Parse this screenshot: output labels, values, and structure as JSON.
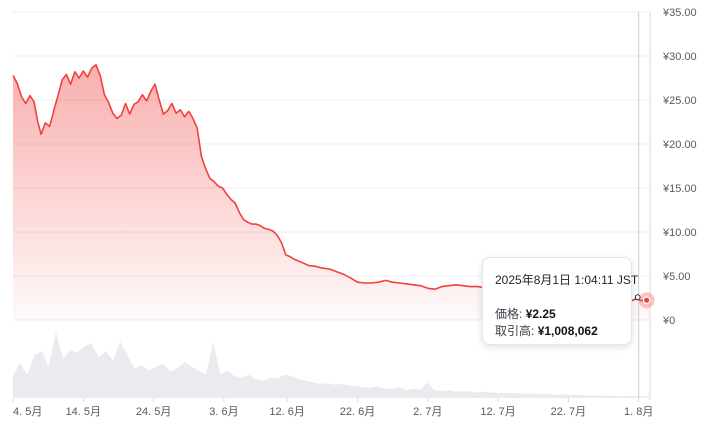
{
  "chart_data": {
    "type": "area",
    "y_axis": {
      "position": "right",
      "range": [
        0,
        35
      ],
      "ticks": [
        35,
        30,
        25,
        20,
        15,
        10,
        5,
        0
      ],
      "tick_labels": [
        "¥35.00",
        "¥30.00",
        "¥25.00",
        "¥20.00",
        "¥15.00",
        "¥10.00",
        "¥5.00",
        "¥0"
      ]
    },
    "x_axis": {
      "tick_labels": [
        "4. 5月",
        "14. 5月",
        "24. 5月",
        "3. 6月",
        "12. 6月",
        "22. 6月",
        "2. 7月",
        "12. 7月",
        "22. 7月",
        "1. 8月"
      ],
      "tick_days": [
        0,
        10,
        20,
        30,
        39,
        49,
        59,
        69,
        79,
        89
      ]
    },
    "grid": true,
    "price_series": {
      "color": "#f0413e",
      "points": [
        [
          0,
          27.8
        ],
        [
          0.6,
          26.9
        ],
        [
          1.2,
          25.4
        ],
        [
          1.8,
          24.6
        ],
        [
          2.4,
          25.5
        ],
        [
          3.0,
          24.8
        ],
        [
          3.5,
          22.6
        ],
        [
          4.0,
          21.1
        ],
        [
          4.6,
          22.4
        ],
        [
          5.2,
          22.0
        ],
        [
          5.8,
          23.8
        ],
        [
          6.4,
          25.5
        ],
        [
          7.0,
          27.3
        ],
        [
          7.6,
          27.9
        ],
        [
          8.2,
          26.8
        ],
        [
          8.8,
          28.2
        ],
        [
          9.4,
          27.5
        ],
        [
          10.0,
          28.3
        ],
        [
          10.6,
          27.6
        ],
        [
          11.2,
          28.6
        ],
        [
          11.8,
          29.0
        ],
        [
          12.4,
          27.8
        ],
        [
          13.0,
          25.6
        ],
        [
          13.6,
          24.7
        ],
        [
          14.2,
          23.5
        ],
        [
          14.8,
          22.9
        ],
        [
          15.4,
          23.3
        ],
        [
          16.0,
          24.6
        ],
        [
          16.6,
          23.4
        ],
        [
          17.2,
          24.5
        ],
        [
          17.8,
          24.8
        ],
        [
          18.4,
          25.6
        ],
        [
          19.0,
          24.9
        ],
        [
          19.6,
          26.0
        ],
        [
          20.2,
          26.8
        ],
        [
          20.8,
          25.0
        ],
        [
          21.4,
          23.4
        ],
        [
          22.0,
          23.8
        ],
        [
          22.6,
          24.6
        ],
        [
          23.2,
          23.5
        ],
        [
          23.8,
          23.9
        ],
        [
          24.4,
          23.1
        ],
        [
          25.0,
          23.7
        ],
        [
          25.6,
          22.9
        ],
        [
          26.2,
          21.8
        ],
        [
          26.8,
          18.6
        ],
        [
          27.4,
          17.2
        ],
        [
          28.0,
          16.1
        ],
        [
          28.6,
          15.7
        ],
        [
          29.2,
          15.2
        ],
        [
          29.8,
          15.0
        ],
        [
          30.4,
          14.3
        ],
        [
          31.0,
          13.7
        ],
        [
          31.6,
          13.3
        ],
        [
          32.2,
          12.2
        ],
        [
          32.8,
          11.4
        ],
        [
          33.4,
          11.1
        ],
        [
          34.0,
          10.9
        ],
        [
          34.6,
          10.9
        ],
        [
          35.2,
          10.7
        ],
        [
          35.8,
          10.4
        ],
        [
          36.4,
          10.3
        ],
        [
          37.0,
          10.1
        ],
        [
          37.6,
          9.6
        ],
        [
          38.2,
          8.8
        ],
        [
          38.8,
          7.4
        ],
        [
          39.4,
          7.2
        ],
        [
          40.0,
          6.9
        ],
        [
          40.6,
          6.7
        ],
        [
          41.2,
          6.5
        ],
        [
          42.0,
          6.2
        ],
        [
          43.0,
          6.1
        ],
        [
          44.0,
          5.9
        ],
        [
          45.0,
          5.8
        ],
        [
          46.0,
          5.5
        ],
        [
          47.0,
          5.2
        ],
        [
          48.0,
          4.8
        ],
        [
          49.0,
          4.3
        ],
        [
          50.0,
          4.2
        ],
        [
          51.0,
          4.2
        ],
        [
          52.0,
          4.3
        ],
        [
          53.0,
          4.5
        ],
        [
          54.0,
          4.3
        ],
        [
          55.0,
          4.2
        ],
        [
          56.0,
          4.1
        ],
        [
          57.0,
          4.0
        ],
        [
          58.0,
          3.9
        ],
        [
          59.0,
          3.6
        ],
        [
          60.0,
          3.5
        ],
        [
          61.0,
          3.8
        ],
        [
          62.0,
          3.9
        ],
        [
          63.0,
          4.0
        ],
        [
          64.0,
          3.9
        ],
        [
          65.0,
          3.8
        ],
        [
          66.0,
          3.8
        ],
        [
          67.0,
          3.7
        ],
        [
          68.0,
          3.6
        ],
        [
          69.0,
          3.5
        ],
        [
          70.0,
          3.4
        ],
        [
          71.0,
          3.3
        ],
        [
          72.0,
          3.2
        ],
        [
          73.0,
          3.1
        ],
        [
          74.0,
          3.0
        ],
        [
          75.0,
          2.9
        ],
        [
          76.0,
          2.9
        ],
        [
          77.0,
          2.8
        ],
        [
          78.0,
          2.7
        ],
        [
          79.0,
          2.7
        ],
        [
          80.0,
          2.6
        ],
        [
          81.0,
          2.6
        ],
        [
          82.0,
          2.5
        ],
        [
          83.0,
          2.5
        ],
        [
          84.0,
          2.4
        ],
        [
          85.0,
          2.4
        ],
        [
          86.0,
          2.3
        ],
        [
          87.0,
          2.3
        ],
        [
          88.0,
          2.2
        ],
        [
          88.6,
          2.4
        ],
        [
          89.0,
          2.25
        ],
        [
          90.5,
          2.1
        ]
      ]
    },
    "volume_series": {
      "color": "#e9ebee",
      "values": [
        0.28,
        0.45,
        0.3,
        0.55,
        0.6,
        0.4,
        0.85,
        0.5,
        0.62,
        0.58,
        0.66,
        0.7,
        0.52,
        0.6,
        0.48,
        0.72,
        0.55,
        0.38,
        0.42,
        0.36,
        0.4,
        0.44,
        0.34,
        0.38,
        0.46,
        0.4,
        0.35,
        0.3,
        0.72,
        0.3,
        0.35,
        0.28,
        0.26,
        0.3,
        0.24,
        0.22,
        0.26,
        0.25,
        0.3,
        0.28,
        0.24,
        0.22,
        0.2,
        0.18,
        0.19,
        0.17,
        0.18,
        0.16,
        0.15,
        0.14,
        0.13,
        0.15,
        0.12,
        0.11,
        0.14,
        0.1,
        0.12,
        0.11,
        0.2,
        0.1,
        0.09,
        0.1,
        0.08,
        0.09,
        0.08,
        0.07,
        0.08,
        0.07,
        0.06,
        0.07,
        0.06,
        0.06,
        0.05,
        0.06,
        0.05,
        0.05,
        0.04,
        0.05,
        0.04,
        0.04,
        0.03,
        0.04,
        0.03,
        0.03,
        0.03,
        0.02,
        0.03,
        0.02,
        0.02,
        0.02
      ]
    },
    "hover_day": 89.0,
    "tooltip": {
      "time": "2025年8月1日 1:04:11 JST",
      "price_label": "価格:",
      "price_value": "¥2.25",
      "volume_label": "取引高:",
      "volume_value": "¥1,008,062"
    }
  }
}
